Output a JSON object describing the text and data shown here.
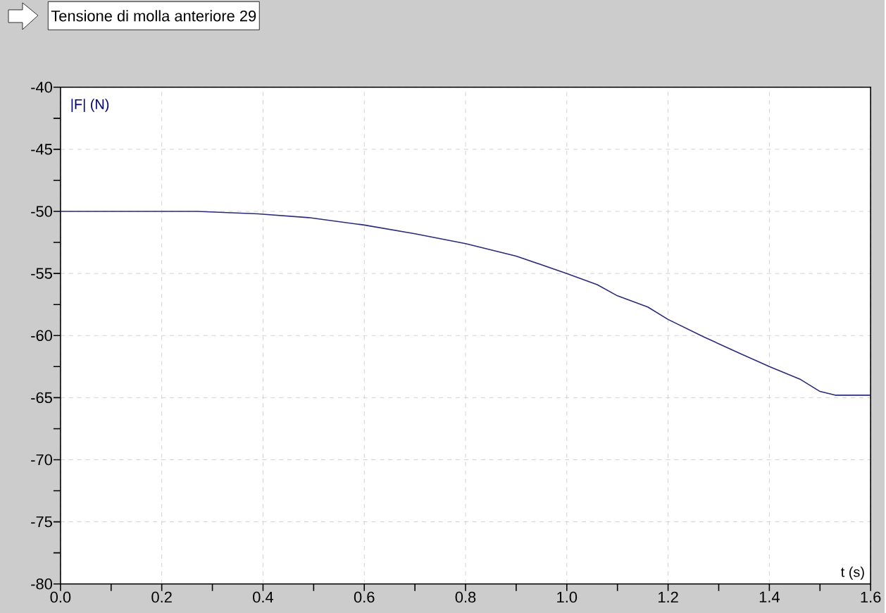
{
  "chart_data": {
    "type": "line",
    "title": "Tensione di molla anteriore 29",
    "xlabel": "t (s)",
    "ylabel": "|F| (N)",
    "x": [
      0,
      0.27,
      0.39,
      0.49,
      0.6,
      0.7,
      0.8,
      0.9,
      1.0,
      1.06,
      1.1,
      1.16,
      1.2,
      1.27,
      1.34,
      1.4,
      1.46,
      1.5,
      1.53,
      1.6
    ],
    "series": [
      {
        "color": "#2a2a7a",
        "values": [
          -50,
          -50,
          -50.2,
          -50.5,
          -51.1,
          -51.8,
          -52.6,
          -53.6,
          -55.0,
          -55.9,
          -56.8,
          -57.7,
          -58.7,
          -60.1,
          -61.4,
          -62.5,
          -63.5,
          -64.5,
          -64.8,
          -64.8
        ]
      }
    ],
    "xlim": [
      0,
      1.6
    ],
    "ylim": [
      -80,
      -40
    ],
    "xticks": [
      {
        "value": 0,
        "label": "0.0"
      },
      {
        "value": 0.1,
        "label": null
      },
      {
        "value": 0.2,
        "label": "0.2"
      },
      {
        "value": 0.3,
        "label": null
      },
      {
        "value": 0.4,
        "label": "0.4"
      },
      {
        "value": 0.5,
        "label": null
      },
      {
        "value": 0.6,
        "label": "0.6"
      },
      {
        "value": 0.7,
        "label": null
      },
      {
        "value": 0.8,
        "label": "0.8"
      },
      {
        "value": 0.9,
        "label": null
      },
      {
        "value": 1.0,
        "label": "1.0"
      },
      {
        "value": 1.1,
        "label": null
      },
      {
        "value": 1.2,
        "label": "1.2"
      },
      {
        "value": 1.3,
        "label": null
      },
      {
        "value": 1.4,
        "label": "1.4"
      },
      {
        "value": 1.5,
        "label": null
      },
      {
        "value": 1.6,
        "label": "1.6"
      }
    ],
    "yticks": [
      -80,
      {
        "value": -77.5,
        "label": null
      },
      -75,
      {
        "value": -72.5,
        "label": null
      },
      -70,
      {
        "value": -67.5,
        "label": null
      },
      -65,
      {
        "value": -62.5,
        "label": null
      },
      -60,
      {
        "value": -57.5,
        "label": null
      },
      -55,
      {
        "value": -52.5,
        "label": null
      },
      -50,
      {
        "value": -47.5,
        "label": null
      },
      -45,
      {
        "value": -42.5,
        "label": null
      },
      -40
    ],
    "grid": true,
    "line_style": "solid",
    "marker": "none"
  }
}
